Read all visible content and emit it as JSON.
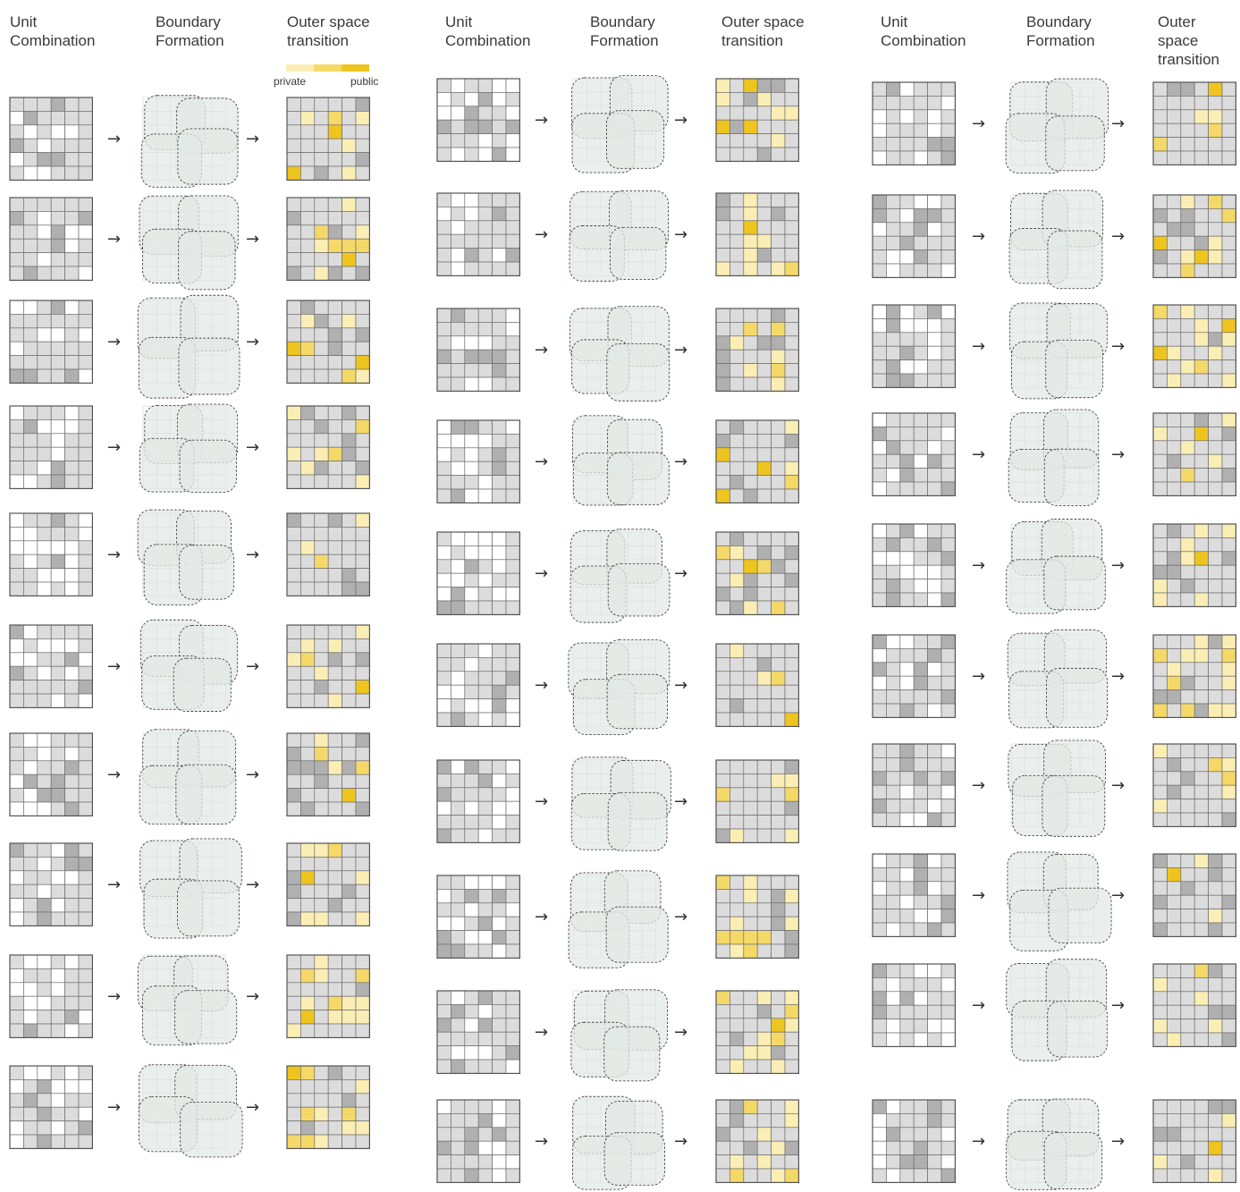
{
  "columns": [
    {
      "headers": [
        "Unit\nCombination",
        "Boundary\nFormation",
        "Outer space\ntransition"
      ]
    },
    {
      "headers": [
        "Unit\nCombination",
        "Boundary\nFormation",
        "Outer space\ntransition"
      ]
    },
    {
      "headers": [
        "Unit\nCombination",
        "Boundary\nFormation",
        "Outer space\ntransition"
      ]
    }
  ],
  "legend": {
    "private_label": "private",
    "public_label": "public",
    "colors": [
      "#fbeeb4",
      "#f5d968",
      "#eec51e"
    ]
  },
  "palette": {
    "white": "#ffffff",
    "light_gray": "#dcdcdc",
    "dark_gray": "#b0b0b0",
    "boundary_fill": "#e3e8e6",
    "boundary_stroke": "#444444",
    "yellow_light": "#fbeeb4",
    "yellow_mid": "#f5d968",
    "yellow_dark": "#eec51e"
  },
  "arrow_glyph": "→",
  "rows_per_column": 10
}
